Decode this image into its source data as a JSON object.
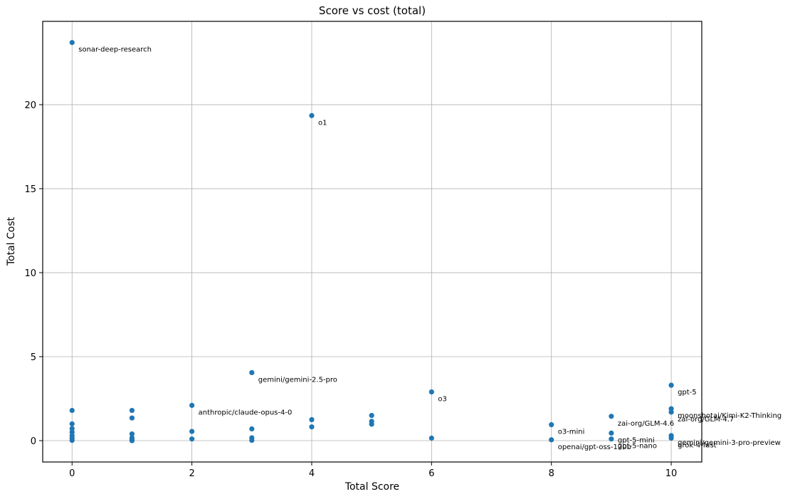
{
  "chart_data": {
    "type": "scatter",
    "title": "Score vs cost (total)",
    "xlabel": "Total Score",
    "ylabel": "Total Cost",
    "xlim": [
      -0.49,
      10.51
    ],
    "ylim": [
      -1.27,
      24.96
    ],
    "x_ticks": [
      0,
      2,
      4,
      6,
      8,
      10
    ],
    "y_ticks": [
      0,
      5,
      10,
      15,
      20
    ],
    "grid": true,
    "legend": false,
    "marker_color": "#1f77b4",
    "grid_color": "#b0b0b0",
    "spine_color": "#000000",
    "points": [
      {
        "x": 0,
        "y": 23.7,
        "label": "sonar-deep-research"
      },
      {
        "x": 4,
        "y": 19.35,
        "label": "o1"
      },
      {
        "x": 3,
        "y": 4.05,
        "label": "gemini/gemini-2.5-pro"
      },
      {
        "x": 10,
        "y": 3.3,
        "label": "gpt-5"
      },
      {
        "x": 6,
        "y": 2.9,
        "label": "o3"
      },
      {
        "x": 2,
        "y": 2.1,
        "label": "anthropic/claude-opus-4-0"
      },
      {
        "x": 10,
        "y": 1.9,
        "label": "moonshotai/Kimi-K2-Thinking"
      },
      {
        "x": 10,
        "y": 1.7,
        "label": "zai-org/GLM-4.7"
      },
      {
        "x": 9,
        "y": 1.45,
        "label": "zai-org/GLM-4.6"
      },
      {
        "x": 8,
        "y": 0.95,
        "label": "o3-mini"
      },
      {
        "x": 9,
        "y": 0.45,
        "label": "gpt-5-mini"
      },
      {
        "x": 9,
        "y": 0.1,
        "label": "gpt-5-nano"
      },
      {
        "x": 8,
        "y": 0.05,
        "label": "openai/gpt-oss-120b"
      },
      {
        "x": 10,
        "y": 0.3,
        "label": "gemini/gemini-3-pro-preview"
      },
      {
        "x": 10,
        "y": 0.15,
        "label": "grok-4-fast"
      },
      {
        "x": 0,
        "y": 1.8
      },
      {
        "x": 0,
        "y": 1.0
      },
      {
        "x": 0,
        "y": 0.72
      },
      {
        "x": 0,
        "y": 0.5
      },
      {
        "x": 0,
        "y": 0.3
      },
      {
        "x": 0,
        "y": 0.15
      },
      {
        "x": 0,
        "y": 0.02
      },
      {
        "x": 1,
        "y": 1.8
      },
      {
        "x": 1,
        "y": 1.35
      },
      {
        "x": 1,
        "y": 0.4
      },
      {
        "x": 1,
        "y": 0.17
      },
      {
        "x": 1,
        "y": 0.05
      },
      {
        "x": 1,
        "y": 0.0
      },
      {
        "x": 2,
        "y": 0.55
      },
      {
        "x": 2,
        "y": 0.1
      },
      {
        "x": 3,
        "y": 0.7
      },
      {
        "x": 3,
        "y": 0.17
      },
      {
        "x": 3,
        "y": 0.02
      },
      {
        "x": 4,
        "y": 1.25
      },
      {
        "x": 4,
        "y": 0.82
      },
      {
        "x": 5,
        "y": 1.5
      },
      {
        "x": 5,
        "y": 1.15
      },
      {
        "x": 5,
        "y": 0.98
      },
      {
        "x": 6,
        "y": 0.15
      }
    ]
  }
}
